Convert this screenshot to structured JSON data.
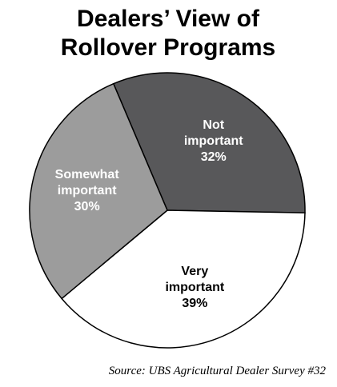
{
  "chart_data": {
    "type": "pie",
    "title": "Dealers’ View of Rollover Programs",
    "categories": [
      "Not important",
      "Very important",
      "Somewhat important"
    ],
    "values": [
      32,
      39,
      30
    ],
    "value_labels": [
      "32%",
      "39%",
      "30%"
    ],
    "colors": [
      "#58585a",
      "#ffffff",
      "#9c9c9c"
    ],
    "source": "Source: UBS Agricultural Dealer Survey #32"
  }
}
